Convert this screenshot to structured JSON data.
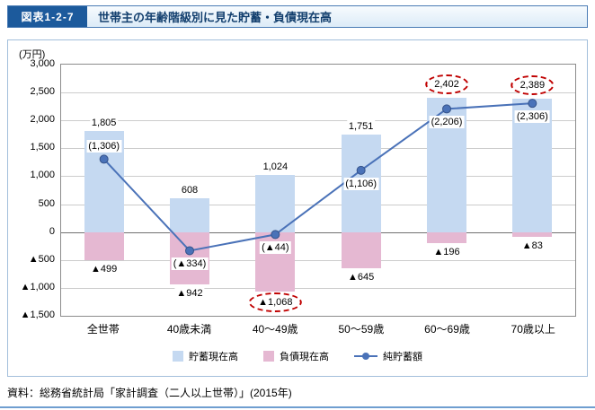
{
  "header": {
    "figure_label": "図表1-2-7",
    "title": "世帯主の年齢階級別に見た貯蓄・負債現在高"
  },
  "chart_data": {
    "type": "bar",
    "title": "世帯主の年齢階級別に見た貯蓄・負債現在高",
    "unit_label": "(万円)",
    "categories": [
      "全世帯",
      "40歳未満",
      "40～49歳",
      "50～59歳",
      "60～69歳",
      "70歳以上"
    ],
    "series": [
      {
        "name": "貯蓄現在高",
        "type": "bar",
        "color": "#c5d9f1",
        "values": [
          1805,
          608,
          1024,
          1751,
          2402,
          2389
        ],
        "labels": [
          "1,805",
          "608",
          "1,024",
          "1,751",
          "2,402",
          "2,389"
        ],
        "circled": [
          false,
          false,
          false,
          false,
          true,
          true
        ]
      },
      {
        "name": "負債現在高",
        "type": "bar",
        "color": "#e5b8d2",
        "values": [
          -499,
          -942,
          -1068,
          -645,
          -196,
          -83
        ],
        "labels": [
          "▲499",
          "▲942",
          "▲1,068",
          "▲645",
          "▲196",
          "▲83"
        ],
        "circled": [
          false,
          false,
          true,
          false,
          false,
          false
        ]
      },
      {
        "name": "純貯蓄額",
        "type": "line",
        "color": "#4a72b8",
        "values": [
          1306,
          -334,
          -44,
          1106,
          2206,
          2306
        ],
        "labels": [
          "(1,306)",
          "(▲334)",
          "(▲44)",
          "(1,106)",
          "(2,206)",
          "(2,306)"
        ],
        "label_side": [
          "above",
          "below",
          "below",
          "below",
          "below",
          "below"
        ]
      }
    ],
    "ylim": [
      -1500,
      3000
    ],
    "ytick_step": 500,
    "ytick_labels": [
      "3,000",
      "2,500",
      "2,000",
      "1,500",
      "1,000",
      "500",
      "0",
      "▲500",
      "▲1,000",
      "▲1,500"
    ],
    "grid": true,
    "legend_position": "bottom",
    "annotation_color": "#c00000"
  },
  "source": "資料：総務省統計局「家計調査（二人以上世帯）」(2015年)"
}
